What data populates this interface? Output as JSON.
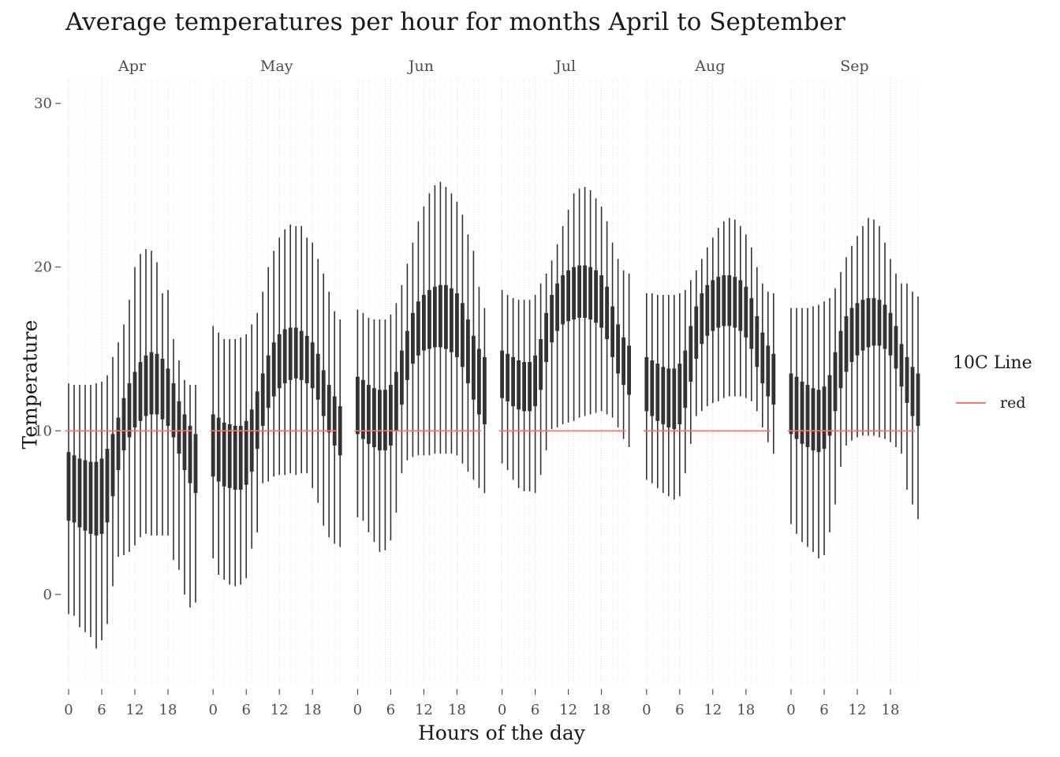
{
  "chart_data": {
    "type": "boxplot",
    "title": "Average temperatures per hour for months April to September",
    "xlabel": "Hours of the day",
    "ylabel": "Temperature",
    "ylim": [
      -5.5,
      31.5
    ],
    "xlim": [
      -1,
      24
    ],
    "yticks": [
      0,
      10,
      20,
      30
    ],
    "xticks": [
      0,
      6,
      12,
      18
    ],
    "reference_line": 10,
    "legend": {
      "title": "10C Line",
      "label": "red",
      "color": "#f8766d",
      "position": "right"
    },
    "grid": "vertical dotted minor",
    "panels": [
      {
        "name": "Apr",
        "q1": [
          4.5,
          4.4,
          4.1,
          3.9,
          3.7,
          3.6,
          3.7,
          4.4,
          6.0,
          7.6,
          8.8,
          9.6,
          10.2,
          10.6,
          10.9,
          11.0,
          11.0,
          10.7,
          10.3,
          9.6,
          8.6,
          7.6,
          6.8,
          6.2
        ],
        "q3": [
          8.7,
          8.5,
          8.3,
          8.2,
          8.1,
          8.1,
          8.3,
          8.9,
          9.8,
          10.8,
          12.0,
          12.9,
          13.6,
          14.2,
          14.6,
          14.8,
          14.7,
          14.4,
          13.8,
          12.9,
          11.8,
          11.0,
          10.3,
          9.8
        ],
        "lo": [
          -1.2,
          -1.3,
          -2.0,
          -2.3,
          -2.6,
          -3.3,
          -2.8,
          -1.8,
          0.5,
          2.3,
          2.4,
          2.6,
          3.0,
          3.5,
          3.7,
          3.6,
          3.6,
          3.6,
          3.6,
          2.1,
          1.5,
          0.0,
          -0.8,
          -0.5
        ],
        "hi": [
          12.9,
          12.8,
          12.8,
          12.8,
          12.8,
          12.9,
          13.0,
          13.4,
          14.5,
          15.4,
          16.5,
          18.0,
          20.0,
          20.8,
          21.1,
          21.0,
          20.3,
          18.4,
          18.6,
          15.6,
          14.3,
          13.1,
          12.8,
          12.8
        ]
      },
      {
        "name": "May",
        "q1": [
          7.2,
          6.9,
          6.6,
          6.5,
          6.4,
          6.4,
          6.7,
          7.5,
          8.9,
          10.3,
          11.4,
          12.1,
          12.6,
          12.9,
          13.1,
          13.2,
          13.1,
          12.9,
          12.6,
          11.9,
          10.9,
          9.9,
          9.1,
          8.5
        ],
        "q3": [
          11.0,
          10.8,
          10.5,
          10.4,
          10.3,
          10.3,
          10.6,
          11.3,
          12.4,
          13.5,
          14.6,
          15.4,
          15.9,
          16.2,
          16.3,
          16.3,
          16.1,
          15.8,
          15.4,
          14.7,
          13.7,
          12.8,
          12.1,
          11.5
        ],
        "lo": [
          2.2,
          1.2,
          0.9,
          0.6,
          0.5,
          0.6,
          1.0,
          2.8,
          3.8,
          6.8,
          6.9,
          7.2,
          7.3,
          7.3,
          7.4,
          7.3,
          7.4,
          7.4,
          6.5,
          5.6,
          4.2,
          3.5,
          3.1,
          2.9
        ],
        "hi": [
          16.4,
          16.0,
          15.6,
          15.6,
          15.6,
          15.7,
          15.9,
          16.5,
          17.2,
          18.5,
          20.0,
          21.0,
          21.8,
          22.3,
          22.6,
          22.5,
          22.5,
          21.8,
          21.5,
          20.5,
          19.6,
          18.5,
          17.3,
          16.8
        ]
      },
      {
        "name": "Jun",
        "q1": [
          9.8,
          9.5,
          9.2,
          9.0,
          8.8,
          8.8,
          9.1,
          10.0,
          11.6,
          13.1,
          14.1,
          14.6,
          14.9,
          15.0,
          15.1,
          15.1,
          15.0,
          14.8,
          14.5,
          13.9,
          12.9,
          11.9,
          11.0,
          10.4
        ],
        "q3": [
          13.3,
          13.1,
          12.8,
          12.6,
          12.5,
          12.5,
          12.8,
          13.6,
          14.9,
          16.1,
          17.2,
          17.9,
          18.3,
          18.6,
          18.8,
          18.9,
          18.9,
          18.7,
          18.4,
          17.8,
          16.8,
          15.8,
          15.0,
          14.5
        ],
        "lo": [
          4.7,
          4.5,
          3.8,
          3.2,
          2.6,
          2.7,
          3.3,
          5.0,
          7.4,
          8.2,
          8.4,
          8.5,
          8.5,
          8.5,
          8.6,
          8.6,
          8.6,
          8.6,
          8.5,
          8.0,
          7.5,
          7.0,
          6.5,
          6.2
        ],
        "hi": [
          17.4,
          17.2,
          16.9,
          16.8,
          16.8,
          16.8,
          17.1,
          17.8,
          18.9,
          20.2,
          21.5,
          22.8,
          23.7,
          24.5,
          25.0,
          25.2,
          24.9,
          24.5,
          24.0,
          23.2,
          22.0,
          21.0,
          18.8,
          17.5
        ]
      },
      {
        "name": "Jul",
        "q1": [
          12.0,
          11.8,
          11.5,
          11.3,
          11.2,
          11.2,
          11.5,
          12.5,
          14.2,
          15.4,
          16.1,
          16.5,
          16.7,
          16.8,
          16.9,
          16.9,
          16.8,
          16.6,
          16.3,
          15.6,
          14.5,
          13.5,
          12.8,
          12.2
        ],
        "q3": [
          14.9,
          14.7,
          14.5,
          14.3,
          14.2,
          14.2,
          14.6,
          15.6,
          17.2,
          18.3,
          19.0,
          19.5,
          19.8,
          20.0,
          20.1,
          20.1,
          20.0,
          19.8,
          19.5,
          18.8,
          17.6,
          16.5,
          15.7,
          15.2
        ],
        "lo": [
          8.0,
          7.6,
          7.0,
          6.5,
          6.3,
          6.3,
          6.2,
          7.3,
          8.8,
          10.1,
          10.2,
          10.4,
          10.5,
          10.6,
          10.8,
          10.9,
          11.0,
          11.1,
          11.2,
          11.0,
          10.8,
          10.2,
          9.5,
          9.0
        ],
        "hi": [
          18.6,
          18.3,
          18.1,
          18.0,
          18.0,
          18.0,
          18.3,
          19.0,
          19.6,
          20.4,
          21.4,
          22.5,
          23.5,
          24.5,
          24.8,
          24.9,
          24.7,
          24.2,
          23.7,
          22.8,
          21.5,
          20.5,
          19.8,
          19.6
        ]
      },
      {
        "name": "Aug",
        "q1": [
          11.2,
          10.9,
          10.6,
          10.4,
          10.2,
          10.1,
          10.4,
          11.4,
          13.0,
          14.4,
          15.3,
          15.8,
          16.1,
          16.3,
          16.4,
          16.4,
          16.3,
          16.1,
          15.7,
          15.0,
          13.9,
          12.9,
          12.1,
          11.6
        ],
        "q3": [
          14.5,
          14.3,
          14.1,
          13.9,
          13.8,
          13.8,
          14.1,
          14.9,
          16.4,
          17.6,
          18.4,
          18.9,
          19.2,
          19.4,
          19.5,
          19.5,
          19.4,
          19.2,
          18.8,
          18.1,
          17.0,
          16.0,
          15.2,
          14.7
        ],
        "lo": [
          7.0,
          6.8,
          6.5,
          6.2,
          6.0,
          5.8,
          6.0,
          7.4,
          9.2,
          10.9,
          11.2,
          11.5,
          11.7,
          11.8,
          12.0,
          12.1,
          12.1,
          12.1,
          12.0,
          11.8,
          11.2,
          10.2,
          9.3,
          8.6
        ],
        "hi": [
          18.4,
          18.4,
          18.3,
          18.3,
          18.3,
          18.3,
          18.4,
          18.6,
          19.2,
          19.8,
          20.5,
          21.2,
          21.8,
          22.4,
          22.8,
          23.0,
          22.9,
          22.5,
          22.0,
          21.2,
          20.0,
          19.0,
          18.5,
          18.4
        ]
      },
      {
        "name": "Sep",
        "q1": [
          9.8,
          9.5,
          9.2,
          9.0,
          8.8,
          8.7,
          8.9,
          9.7,
          11.2,
          12.6,
          13.6,
          14.2,
          14.6,
          14.9,
          15.1,
          15.2,
          15.2,
          15.0,
          14.6,
          13.8,
          12.7,
          11.7,
          10.9,
          10.3
        ],
        "q3": [
          13.5,
          13.3,
          13.0,
          12.8,
          12.6,
          12.5,
          12.7,
          13.4,
          14.8,
          16.1,
          17.0,
          17.5,
          17.8,
          18.0,
          18.1,
          18.1,
          18.0,
          17.7,
          17.2,
          16.4,
          15.3,
          14.5,
          13.9,
          13.5
        ],
        "lo": [
          4.3,
          3.7,
          3.2,
          2.9,
          2.6,
          2.2,
          2.4,
          3.8,
          5.5,
          7.8,
          9.1,
          9.4,
          9.6,
          9.7,
          9.7,
          9.7,
          9.6,
          9.5,
          9.3,
          9.0,
          8.6,
          6.4,
          5.5,
          4.6
        ],
        "hi": [
          17.5,
          17.5,
          17.5,
          17.5,
          17.6,
          17.7,
          17.9,
          18.1,
          18.7,
          19.7,
          20.6,
          21.3,
          21.9,
          22.5,
          23.0,
          22.9,
          22.5,
          21.5,
          20.5,
          19.6,
          19.0,
          19.0,
          18.5,
          18.2
        ]
      }
    ]
  }
}
